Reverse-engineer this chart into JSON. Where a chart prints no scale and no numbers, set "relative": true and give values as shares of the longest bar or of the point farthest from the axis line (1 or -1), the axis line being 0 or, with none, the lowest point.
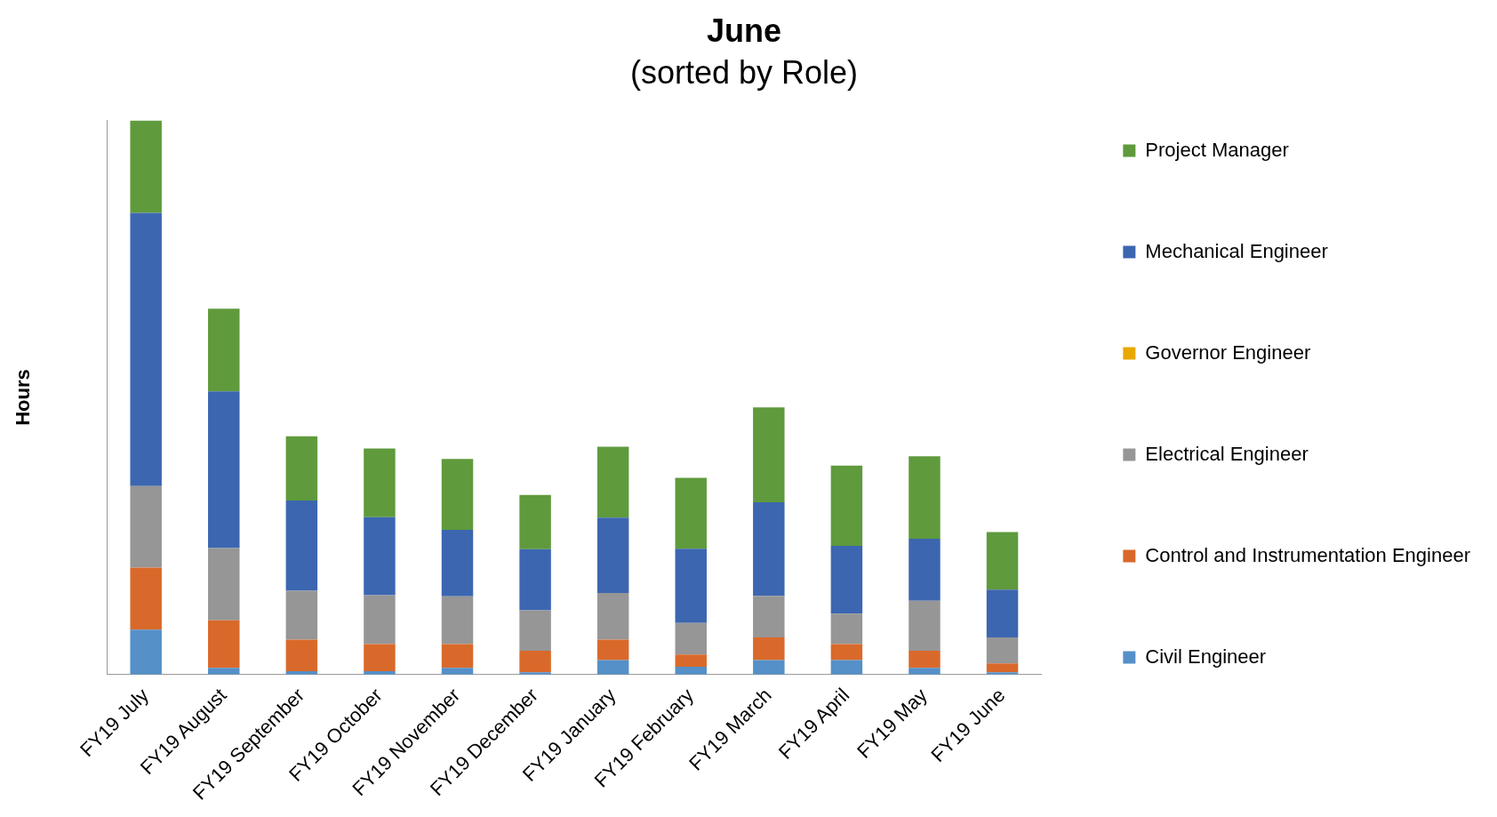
{
  "chart_data": {
    "type": "bar",
    "title": "June",
    "subtitle": "(sorted by Role)",
    "ylabel": "Hours",
    "categories": [
      "FY19 July",
      "FY19 August",
      "FY19 September",
      "FY19 October",
      "FY19 November",
      "FY19 December",
      "FY19 January",
      "FY19 February",
      "FY19 March",
      "FY19 April",
      "FY19 May",
      "FY19 June"
    ],
    "stacked": true,
    "relative": true,
    "legend": "right",
    "series": [
      {
        "name": "Civil Engineer",
        "color": "#5590c8",
        "values": [
          0.081,
          0.012,
          0.006,
          0.006,
          0.012,
          0.004,
          0.026,
          0.014,
          0.026,
          0.026,
          0.012,
          0.004
        ]
      },
      {
        "name": "Control and Instrumentation Engineer",
        "color": "#d9692a",
        "values": [
          0.112,
          0.086,
          0.057,
          0.049,
          0.043,
          0.039,
          0.037,
          0.022,
          0.041,
          0.029,
          0.031,
          0.016
        ]
      },
      {
        "name": "Electrical Engineer",
        "color": "#969696",
        "values": [
          0.147,
          0.13,
          0.088,
          0.088,
          0.086,
          0.073,
          0.084,
          0.057,
          0.075,
          0.055,
          0.09,
          0.047
        ]
      },
      {
        "name": "Governor Engineer",
        "color": "#e8a800",
        "values": [
          0,
          0,
          0,
          0,
          0,
          0,
          0,
          0,
          0,
          0,
          0,
          0
        ]
      },
      {
        "name": "Mechanical Engineer",
        "color": "#3c66b0",
        "values": [
          0.493,
          0.283,
          0.163,
          0.141,
          0.12,
          0.11,
          0.136,
          0.134,
          0.169,
          0.122,
          0.112,
          0.086
        ]
      },
      {
        "name": "Project Manager",
        "color": "#5f9a3c",
        "values": [
          0.167,
          0.149,
          0.116,
          0.124,
          0.128,
          0.098,
          0.128,
          0.128,
          0.171,
          0.145,
          0.149,
          0.104
        ]
      }
    ]
  }
}
